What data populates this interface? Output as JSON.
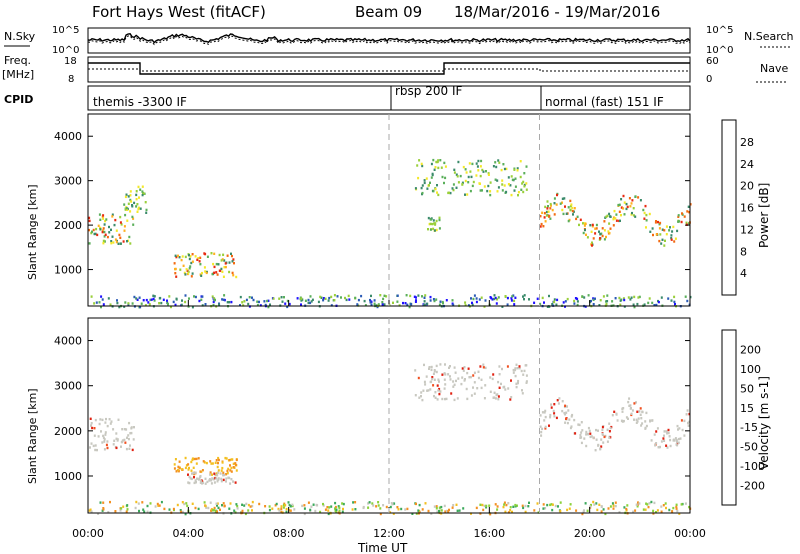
{
  "header": {
    "station": "Fort Hays West (fitACF)",
    "beam": "Beam 09",
    "dates": "18/Mar/2016 - 19/Mar/2016"
  },
  "top_panels": {
    "nsky_label": "N.Sky",
    "nsearch_label": "N.Search",
    "noise_ticks": [
      "10^5",
      "10^0"
    ],
    "freq_label": "Freq.",
    "freq_unit": "[MHz]",
    "freq_ticks": [
      "18",
      "8"
    ],
    "nave_label": "Nave",
    "nave_ticks": [
      "60",
      "0"
    ],
    "cpid_label": "CPID",
    "cpid_segments": [
      {
        "name": "themis -3300 IF",
        "start": 0
      },
      {
        "name": "rbsp 200 IF",
        "start": 12
      },
      {
        "name": "normal (fast) 151 IF",
        "start": 18
      }
    ]
  },
  "chart_data": [
    {
      "type": "heatmap",
      "name": "power",
      "ylabel": "Slant Range [km]",
      "xlabel": "Time UT",
      "xlim": [
        0,
        24
      ],
      "ylim": [
        180,
        4500
      ],
      "yticks": [
        "1000",
        "2000",
        "3000",
        "4000"
      ],
      "xticks": [
        "00:00",
        "04:00",
        "08:00",
        "12:00",
        "16:00",
        "20:00",
        "00:00"
      ],
      "colorbar_label": "Power [dB]",
      "colorbar_ticks": [
        "4",
        "8",
        "12",
        "16",
        "20",
        "24",
        "28"
      ],
      "colorbar_colors": [
        "#1f10ff",
        "#2a5ab5",
        "#3a8a6a",
        "#5aaf5a",
        "#9acf3a",
        "#f3e82a",
        "#ffb020",
        "#f36a10",
        "#e82a10"
      ],
      "regions": [
        {
          "t": [
            0.0,
            1.8
          ],
          "r": [
            1600,
            2300
          ],
          "level": "high"
        },
        {
          "t": [
            1.4,
            2.3
          ],
          "r": [
            2300,
            2900
          ],
          "level": "medium"
        },
        {
          "t": [
            3.4,
            5.9
          ],
          "r": [
            850,
            1400
          ],
          "level": "high"
        },
        {
          "t": [
            13.0,
            17.5
          ],
          "r": [
            2700,
            3500
          ],
          "level": "medium"
        },
        {
          "t": [
            18.0,
            24.0
          ],
          "r": [
            1700,
            2700
          ],
          "level": "high"
        },
        {
          "t": [
            13.5,
            14.0
          ],
          "r": [
            1900,
            2200
          ],
          "level": "medium"
        },
        {
          "t": [
            0.0,
            24.0
          ],
          "r": [
            180,
            450
          ],
          "level": "low"
        }
      ]
    },
    {
      "type": "heatmap",
      "name": "velocity",
      "ylabel": "Slant Range [km]",
      "xlabel": "Time UT",
      "xlim": [
        0,
        24
      ],
      "ylim": [
        180,
        4500
      ],
      "yticks": [
        "1000",
        "2000",
        "3000",
        "4000"
      ],
      "xticks": [
        "00:00",
        "04:00",
        "08:00",
        "12:00",
        "16:00",
        "20:00",
        "00:00"
      ],
      "colorbar_label": "Velocity [m s-1]",
      "colorbar_ticks": [
        "200",
        "100",
        "50",
        "15",
        "-15",
        "-50",
        "-100",
        "-200"
      ],
      "colorbar_colors": [
        "#1f3fb0",
        "#3a7f9a",
        "#3aa85a",
        "#8ad23a",
        "#c8c8c0",
        "#f3c020",
        "#f39020",
        "#f05020",
        "#e02010"
      ],
      "regions": [
        {
          "t": [
            0.0,
            1.8
          ],
          "r": [
            1600,
            2300
          ],
          "level": "neutral"
        },
        {
          "t": [
            3.4,
            5.9
          ],
          "r": [
            1050,
            1450
          ],
          "level": "away"
        },
        {
          "t": [
            3.9,
            5.9
          ],
          "r": [
            850,
            1100
          ],
          "level": "neutral"
        },
        {
          "t": [
            13.0,
            17.5
          ],
          "r": [
            2700,
            3500
          ],
          "level": "neutral"
        },
        {
          "t": [
            18.0,
            24.0
          ],
          "r": [
            1700,
            2700
          ],
          "level": "neutral"
        },
        {
          "t": [
            0.0,
            24.0
          ],
          "r": [
            180,
            450
          ],
          "level": "mixed"
        }
      ]
    }
  ],
  "legend_colors": {
    "power": [
      "#1f10ff",
      "#2a5ab5",
      "#3a8a6a",
      "#5aaf5a",
      "#9acf3a",
      "#f3e82a",
      "#ffb020",
      "#f36a10",
      "#e82a10"
    ],
    "velocity": [
      "#1f3fb0",
      "#3a7f9a",
      "#3aa85a",
      "#8ad23a",
      "#c8c8c0",
      "#f3c020",
      "#f39020",
      "#f05020",
      "#e02010"
    ]
  },
  "markers": {
    "vlines_hours": [
      12,
      18
    ]
  }
}
